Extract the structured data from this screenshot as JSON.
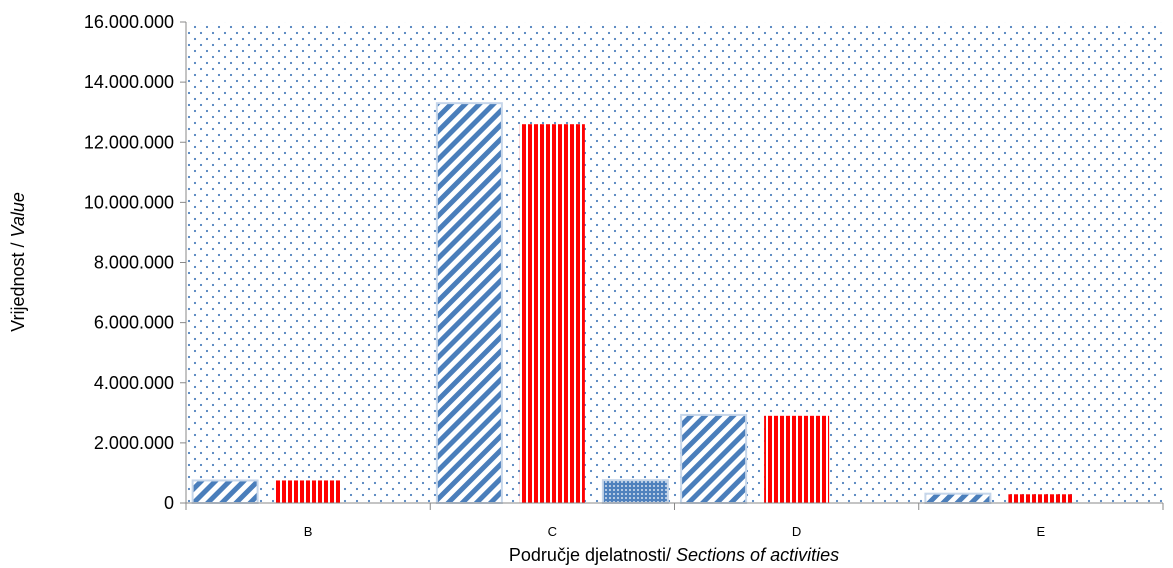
{
  "chart_data": {
    "type": "bar",
    "categories": [
      "B",
      "C",
      "D",
      "E"
    ],
    "series": [
      {
        "values": [
          750000,
          13300000,
          2930000,
          310000
        ],
        "color": "#4a7ebb",
        "pattern": "diagonal"
      },
      {
        "values": [
          750000,
          12600000,
          2900000,
          290000
        ],
        "color": "#ff0000",
        "pattern": "vertical"
      },
      {
        "values": [
          0,
          760000,
          0,
          0
        ],
        "color": "#4f81bd",
        "pattern": "dots"
      }
    ],
    "ylim": [
      0,
      16000000
    ],
    "yticks": [
      0,
      2000000,
      4000000,
      6000000,
      8000000,
      10000000,
      12000000,
      14000000,
      16000000
    ],
    "ytick_labels": [
      "0",
      "2.000.000",
      "4.000.000",
      "6.000.000",
      "8.000.000",
      "10.000.000",
      "12.000.000",
      "14.000.000",
      "16.000.000"
    ],
    "ylabel_main": "Vrijednost / ",
    "ylabel_italic": "Value",
    "xlabel_main": "Područje djelatnosti/ ",
    "xlabel_italic": "Sections of activities",
    "plot_background": "dotted"
  }
}
